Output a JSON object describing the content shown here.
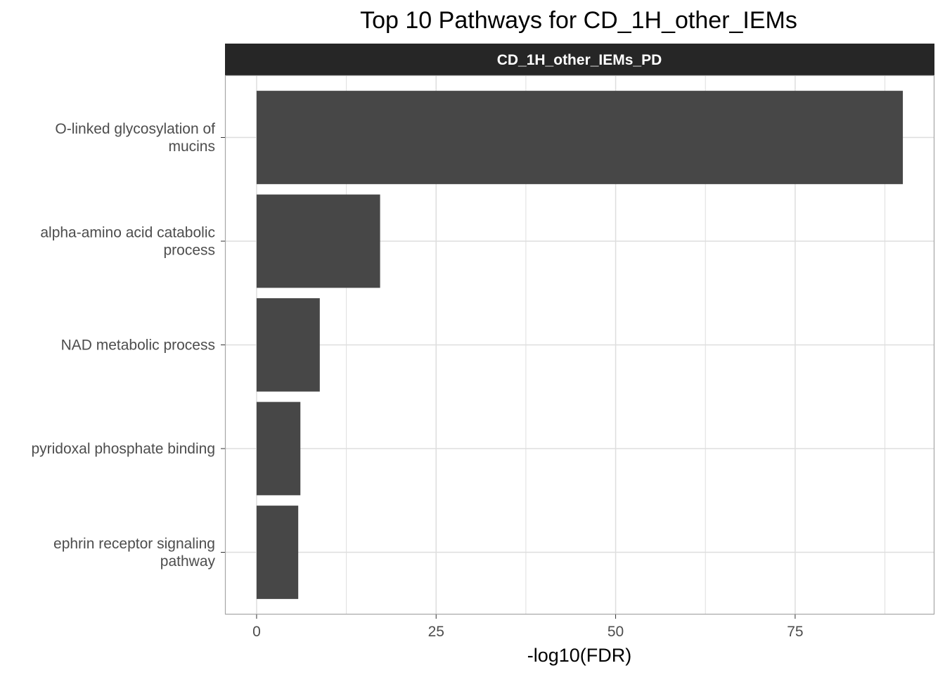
{
  "chart_data": {
    "type": "bar",
    "orientation": "horizontal",
    "title": "Top 10 Pathways for CD_1H_other_IEMs",
    "facet_label": "CD_1H_other_IEMs_PD",
    "xlabel": "-log10(FDR)",
    "ylabel": "",
    "categories": [
      [
        "O-linked glycosylation of",
        "mucins"
      ],
      [
        "alpha-amino acid catabolic",
        "process"
      ],
      [
        "NAD metabolic process"
      ],
      [
        "pyridoxal phosphate binding"
      ],
      [
        "ephrin receptor signaling",
        "pathway"
      ]
    ],
    "values": [
      90.0,
      17.2,
      8.8,
      6.1,
      5.8
    ],
    "xlim": [
      -4.4,
      94.4
    ],
    "xticks": [
      0,
      25,
      50,
      75
    ],
    "xtick_labels": [
      "0",
      "25",
      "50",
      "75"
    ],
    "minor_xticks": [
      12.5,
      37.5,
      62.5,
      87.5
    ],
    "grid": true,
    "legend": "none",
    "colors": {
      "bar": "#474747",
      "strip_background": "#262626",
      "strip_text": "#ffffff",
      "grid": "#dedede",
      "panel_border": "#a6a6a6",
      "tick_text": "#4d4d4d"
    }
  }
}
